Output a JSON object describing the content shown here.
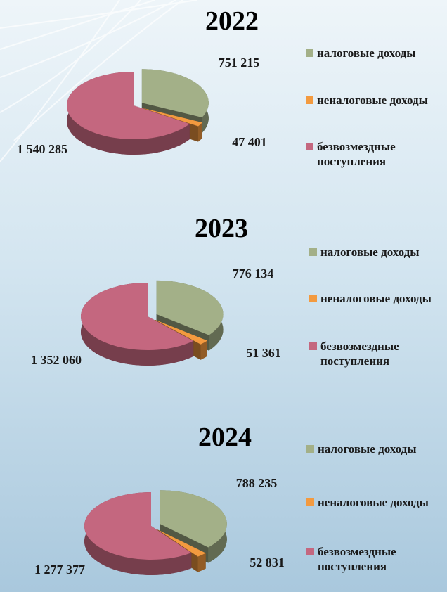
{
  "chart_data": [
    {
      "type": "pie",
      "title": "2022",
      "categories": [
        "налоговые доходы",
        "неналоговые доходы",
        "безвозмездные поступления"
      ],
      "values": [
        751215,
        47401,
        1540285
      ],
      "value_labels": [
        "751 215",
        "47 401",
        "1 540 285"
      ],
      "colors": [
        "#a3b088",
        "#f39a3f",
        "#c4677f"
      ]
    },
    {
      "type": "pie",
      "title": "2023",
      "categories": [
        "налоговые доходы",
        "неналоговые доходы",
        "безвозмездные поступления"
      ],
      "values": [
        776134,
        51361,
        1352060
      ],
      "value_labels": [
        "776 134",
        "51 361",
        "1 352 060"
      ],
      "colors": [
        "#a3b088",
        "#f39a3f",
        "#c4677f"
      ]
    },
    {
      "type": "pie",
      "title": "2024",
      "categories": [
        "налоговые доходы",
        "неналоговые доходы",
        "безвозмездные поступления"
      ],
      "values": [
        788235,
        52831,
        1277377
      ],
      "value_labels": [
        "788 235",
        "52 831",
        "1 277 377"
      ],
      "colors": [
        "#a3b088",
        "#f39a3f",
        "#c4677f"
      ]
    }
  ]
}
